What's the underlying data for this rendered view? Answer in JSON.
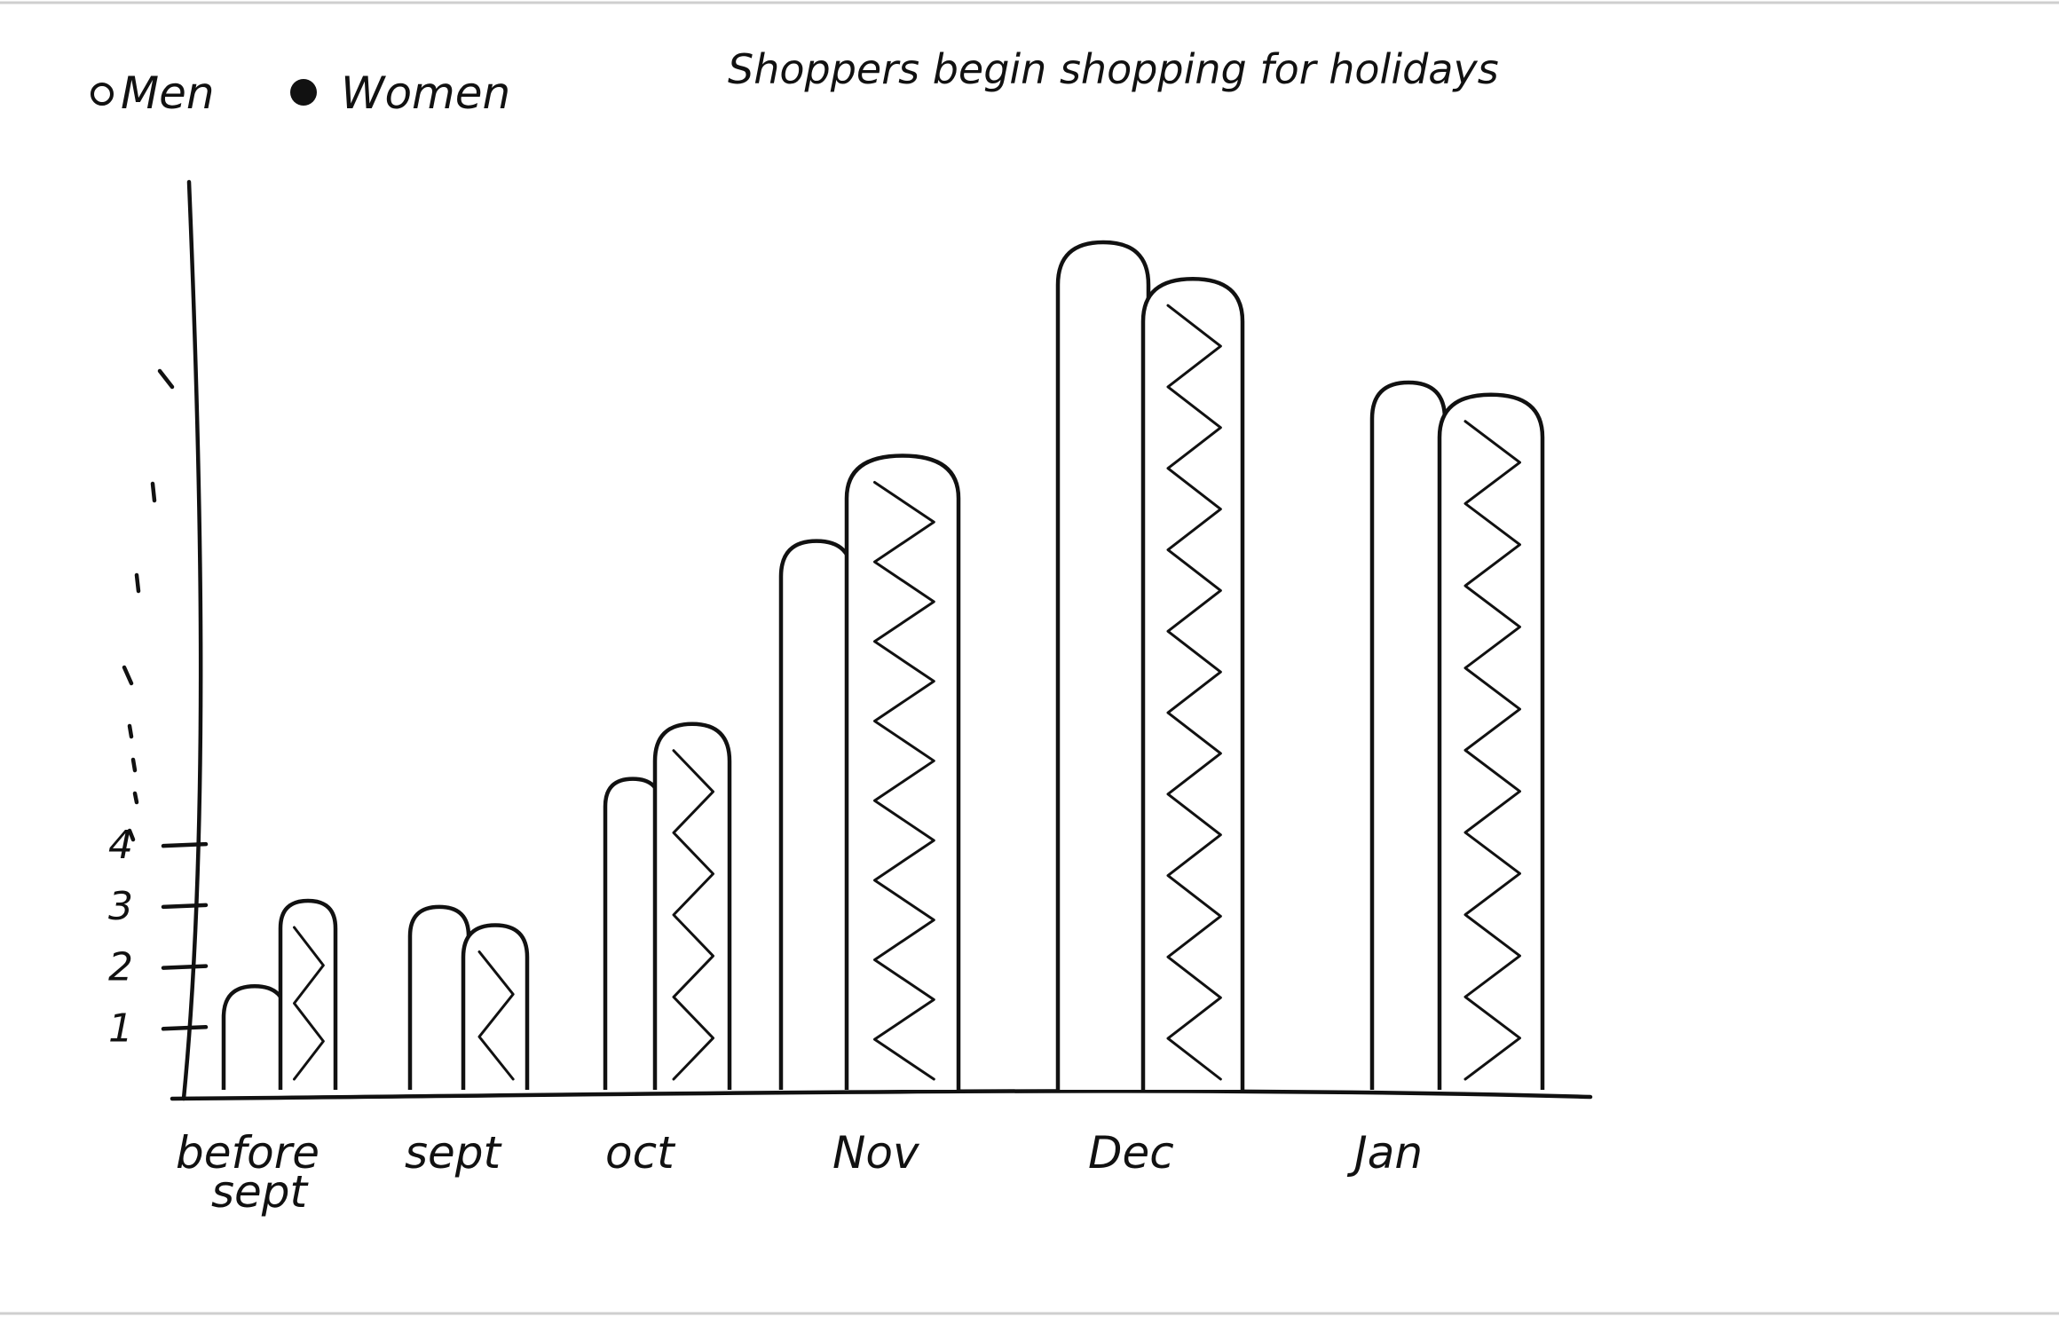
{
  "chart_data": {
    "type": "bar",
    "title": "Shoppers begin shopping for holidays",
    "categories": [
      "before sept",
      "sept",
      "oct",
      "Nov",
      "Dec",
      "Jan"
    ],
    "category_labels": [
      [
        "before",
        "sept"
      ],
      [
        "sept"
      ],
      [
        "oct"
      ],
      [
        "Nov"
      ],
      [
        "Dec"
      ],
      [
        "Jan"
      ]
    ],
    "series": [
      {
        "name": "Men",
        "marker": "open-circle",
        "values": [
          1.7,
          3.0,
          5.1,
          9.0,
          13.9,
          11.6
        ]
      },
      {
        "name": "Women",
        "marker": "filled-circle",
        "values": [
          3.1,
          2.7,
          6.0,
          10.4,
          13.3,
          11.4
        ]
      }
    ],
    "legend_labels": [
      "Men",
      "Women"
    ],
    "y_ticks": [
      "1",
      "2",
      "3",
      "4"
    ],
    "ylim": [
      0,
      17
    ],
    "legend_placement": "top-left",
    "grid": false,
    "style": "hand-drawn sketch",
    "colors": {
      "ink": "#111111",
      "paper": "#ffffff"
    }
  }
}
